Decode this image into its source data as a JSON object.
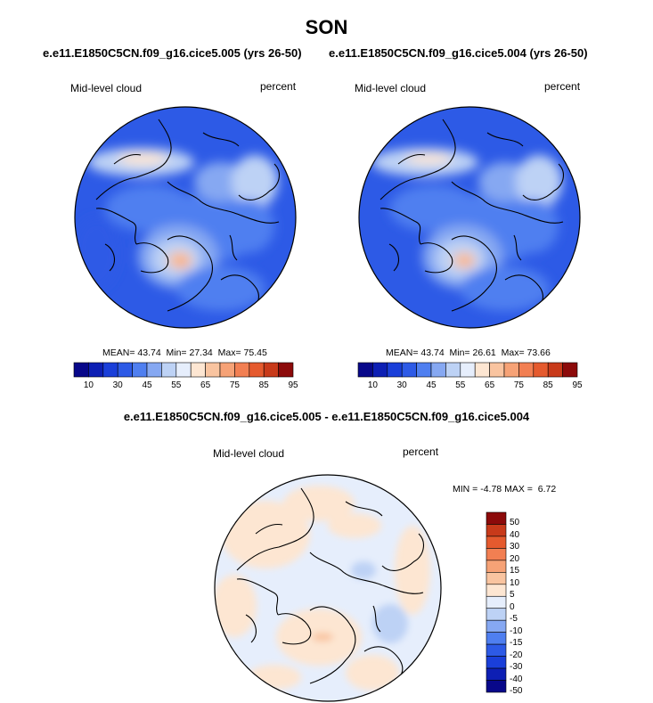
{
  "title": "SON",
  "colors": {
    "abs_scale": [
      "#08088a",
      "#0d1fb4",
      "#1a3fd9",
      "#2d5ae6",
      "#4f7ff0",
      "#86a8f2",
      "#bdd2f5",
      "#e6eefc",
      "#fde6d2",
      "#f9c4a0",
      "#f6a276",
      "#f27f52",
      "#e55a2e",
      "#c83a1a",
      "#8c0a0a"
    ],
    "diff_scale": [
      "#08088a",
      "#0d1fb4",
      "#1a3fd9",
      "#2d5ae6",
      "#4f7ff0",
      "#86a8f2",
      "#bdd2f5",
      "#e6eefc",
      "#fde6d2",
      "#f9c4a0",
      "#f6a276",
      "#f27f52",
      "#e55a2e",
      "#c83a1a",
      "#8c0a0a"
    ],
    "coast": "#000000"
  },
  "chart_data": [
    {
      "type": "heatmap",
      "projection": "polar-stereographic",
      "case_title": "e.e11.E1850C5CN.f09_g16.cice5.005 (yrs 26-50)",
      "variable": "Mid-level cloud",
      "units": "percent",
      "stats": {
        "mean_label": "MEAN=",
        "mean": "43.74",
        "min_label": "Min=",
        "min": "27.34",
        "max_label": "Max=",
        "max": "75.45"
      },
      "colorbar_ticks": [
        "10",
        "30",
        "45",
        "55",
        "65",
        "75",
        "85",
        "95"
      ]
    },
    {
      "type": "heatmap",
      "projection": "polar-stereographic",
      "case_title": "e.e11.E1850C5CN.f09_g16.cice5.004 (yrs 26-50)",
      "variable": "Mid-level cloud",
      "units": "percent",
      "stats": {
        "mean_label": "MEAN=",
        "mean": "43.74",
        "min_label": "Min=",
        "min": "26.61",
        "max_label": "Max=",
        "max": "73.66"
      },
      "colorbar_ticks": [
        "10",
        "30",
        "45",
        "55",
        "65",
        "75",
        "85",
        "95"
      ]
    },
    {
      "type": "heatmap",
      "projection": "polar-stereographic",
      "case_title": "e.e11.E1850C5CN.f09_g16.cice5.005 - e.e11.E1850C5CN.f09_g16.cice5.004",
      "variable": "Mid-level cloud",
      "units": "percent",
      "stats": {
        "min_label": "MIN =",
        "min": "-4.78",
        "max_label": "MAX =",
        "max": "6.72"
      },
      "colorbar_ticks": [
        "50",
        "40",
        "30",
        "20",
        "15",
        "10",
        "5",
        "0",
        "-5",
        "-10",
        "-15",
        "-20",
        "-30",
        "-40",
        "-50"
      ]
    }
  ]
}
